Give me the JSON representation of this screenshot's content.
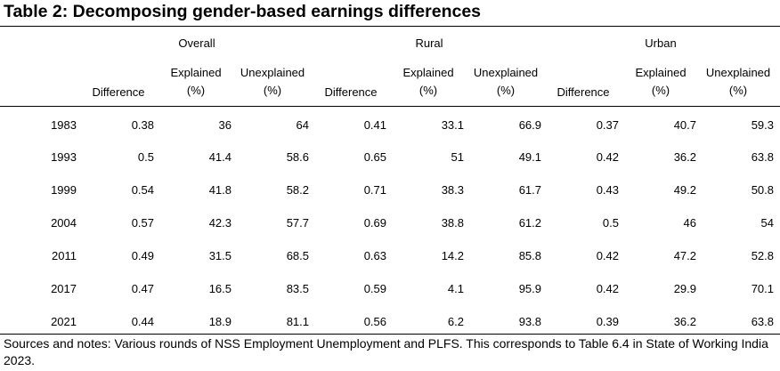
{
  "title": "Table 2: Decomposing gender-based earnings differences",
  "groups": [
    "Overall",
    "Rural",
    "Urban"
  ],
  "subheaders": {
    "difference": "Difference",
    "explained_line1": "Explained",
    "explained_line2": "(%)",
    "unexplained_line1": "Unexplained",
    "unexplained_line2": "(%)"
  },
  "rows": [
    {
      "year": "1983",
      "cells": [
        "0.38",
        "36",
        "64",
        "0.41",
        "33.1",
        "66.9",
        "0.37",
        "40.7",
        "59.3"
      ]
    },
    {
      "year": "1993",
      "cells": [
        "0.5",
        "41.4",
        "58.6",
        "0.65",
        "51",
        "49.1",
        "0.42",
        "36.2",
        "63.8"
      ]
    },
    {
      "year": "1999",
      "cells": [
        "0.54",
        "41.8",
        "58.2",
        "0.71",
        "38.3",
        "61.7",
        "0.43",
        "49.2",
        "50.8"
      ]
    },
    {
      "year": "2004",
      "cells": [
        "0.57",
        "42.3",
        "57.7",
        "0.69",
        "38.8",
        "61.2",
        "0.5",
        "46",
        "54"
      ]
    },
    {
      "year": "2011",
      "cells": [
        "0.49",
        "31.5",
        "68.5",
        "0.63",
        "14.2",
        "85.8",
        "0.42",
        "47.2",
        "52.8"
      ]
    },
    {
      "year": "2017",
      "cells": [
        "0.47",
        "16.5",
        "83.5",
        "0.59",
        "4.1",
        "95.9",
        "0.42",
        "29.9",
        "70.1"
      ]
    },
    {
      "year": "2021",
      "cells": [
        "0.44",
        "18.9",
        "81.1",
        "0.56",
        "6.2",
        "93.8",
        "0.39",
        "36.2",
        "63.8"
      ]
    }
  ],
  "notes": "Sources and notes: Various rounds of NSS Employment Unemployment and PLFS. This corresponds to Table 6.4 in State of Working India 2023."
}
